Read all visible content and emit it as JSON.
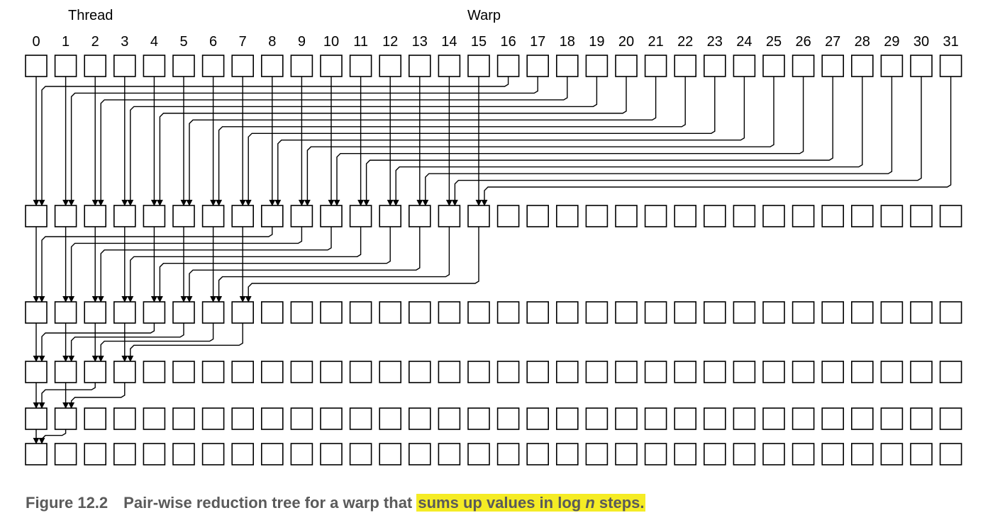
{
  "labels": {
    "thread": "Thread",
    "warp": "Warp"
  },
  "thread_indices": [
    "0",
    "1",
    "2",
    "3",
    "4",
    "5",
    "6",
    "7",
    "8",
    "9",
    "10",
    "11",
    "12",
    "13",
    "14",
    "15",
    "16",
    "17",
    "18",
    "19",
    "20",
    "21",
    "22",
    "23",
    "24",
    "25",
    "26",
    "27",
    "28",
    "29",
    "30",
    "31"
  ],
  "reduction": {
    "lanes": 32,
    "steps": [
      16,
      8,
      4,
      2,
      1
    ]
  },
  "caption": {
    "figure": "Figure 12.2",
    "text": "Pair-wise reduction tree for a warp that ",
    "highlight_pre": "sums up values in log ",
    "highlight_var": "n",
    "highlight_post": " steps."
  },
  "colors": {
    "line": "#000000",
    "caption_text": "#5a5a5a",
    "highlight": "#f5ec25"
  }
}
